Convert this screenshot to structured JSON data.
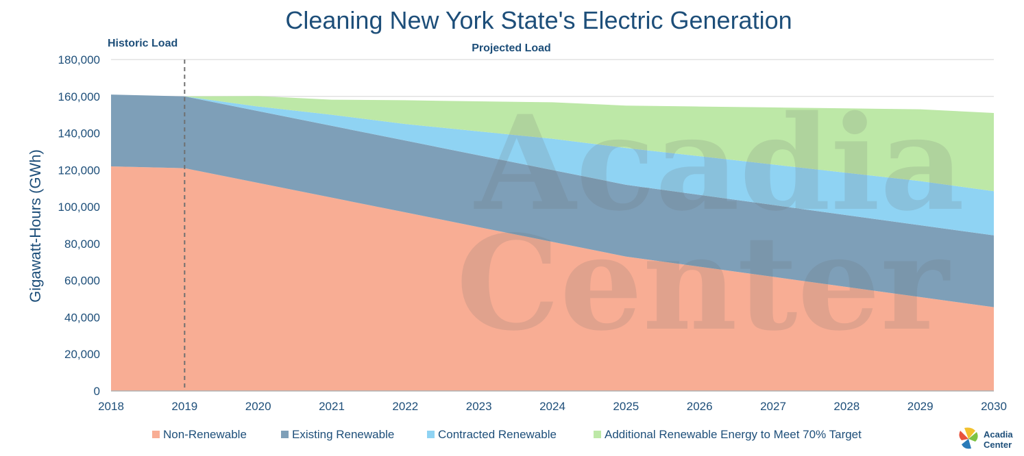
{
  "chart_data": {
    "type": "area",
    "stacked": true,
    "title": "Cleaning New York State's Electric Generation",
    "ylabel": "Gigawatt-Hours (GWh)",
    "xlabel": "",
    "x": [
      2018,
      2019,
      2020,
      2021,
      2022,
      2023,
      2024,
      2025,
      2026,
      2027,
      2028,
      2029,
      2030
    ],
    "ylim": [
      0,
      180000
    ],
    "yticks": [
      0,
      20000,
      40000,
      60000,
      80000,
      100000,
      120000,
      140000,
      160000,
      180000
    ],
    "ytick_labels": [
      "0",
      "20,000",
      "40,000",
      "60,000",
      "80,000",
      "100,000",
      "120,000",
      "140,000",
      "160,000",
      "180,000"
    ],
    "grid": true,
    "legend_position": "bottom",
    "series": [
      {
        "name": "Non-Renewable",
        "color": "#f8ad94",
        "values": [
          122000,
          121000,
          113000,
          105000,
          97000,
          89000,
          81000,
          73000,
          67500,
          62000,
          56500,
          51000,
          45500
        ]
      },
      {
        "name": "Existing Renewable",
        "color": "#7e9fb8",
        "values": [
          39000,
          39000,
          39000,
          39000,
          39000,
          39000,
          39000,
          39000,
          39000,
          39000,
          39000,
          39000,
          39000
        ]
      },
      {
        "name": "Contracted Renewable",
        "color": "#8fd3f3",
        "values": [
          0,
          0,
          2500,
          6000,
          9000,
          13000,
          17000,
          20000,
          21000,
          22000,
          23000,
          24000,
          24000
        ]
      },
      {
        "name": "Additional Renewable Energy to Meet 70% Target",
        "color": "#bde8a7",
        "values": [
          0,
          0,
          5700,
          8200,
          12900,
          16300,
          19800,
          23000,
          27000,
          31000,
          35000,
          39000,
          42500
        ]
      }
    ],
    "annotations": [
      {
        "text": "Historic Load",
        "x": 2018
      },
      {
        "text": "Projected Load",
        "x": 2024
      }
    ],
    "divider_x": 2019
  },
  "watermark": {
    "line1": "Acadia",
    "line2": "Center"
  },
  "logo": {
    "line1": "Acadia",
    "line2": "Center"
  },
  "colors": {
    "text": "#1d4e79",
    "grid": "#dcdcdc",
    "divider": "#707070"
  }
}
